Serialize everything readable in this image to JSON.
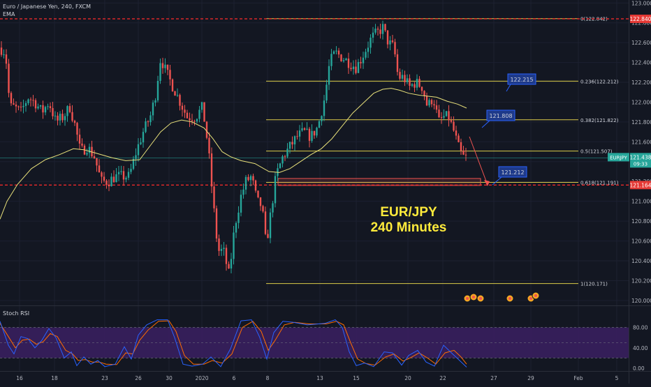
{
  "header": {
    "symbol_line": "Euro / Japanese Yen, 240, FXCM",
    "indicator": "EMA"
  },
  "annotation": {
    "line1": "EUR/JPY",
    "line2": "240 Minutes"
  },
  "price_badge": {
    "symbol": "EURJPY",
    "price": "121.438",
    "countdown": "09:33"
  },
  "callouts": [
    {
      "label": "122.215",
      "price": 122.215
    },
    {
      "label": "121.808",
      "price": 121.808
    },
    {
      "label": "121.212",
      "price": 121.212
    }
  ],
  "stoch_panel": {
    "title": "Stoch RSI",
    "ticks": [
      "80.00",
      "40.00",
      "0.00"
    ]
  },
  "colors": {
    "background": "#131722",
    "up_candle": "#26a69a",
    "down_candle": "#ef5350",
    "ema": "#e8e07a",
    "fib": "#dccc4a",
    "dashed_level": "#ff2b2b",
    "current_price": "#26a69a",
    "callout_fill": "#1e3a8a",
    "stoch_band": "#3b2062",
    "stoch_k": "#2962ff",
    "stoch_d": "#ff6d00"
  },
  "chart_data": {
    "type": "candlestick",
    "y_ticks": [
      123.0,
      122.8,
      122.6,
      122.4,
      122.2,
      122.0,
      121.8,
      121.6,
      121.4,
      121.2,
      121.0,
      120.8,
      120.6,
      120.4,
      120.2,
      120.0
    ],
    "y_tick_labels": [
      "123.000",
      "122.800",
      "122.600",
      "122.400",
      "122.200",
      "122.000",
      "121.800",
      "121.600",
      "121.400",
      "121.200",
      "121.000",
      "120.800",
      "120.600",
      "120.400",
      "120.200",
      "120.000"
    ],
    "ylim": [
      119.95,
      123.03
    ],
    "x_tick_labels": [
      "16",
      "18",
      "23",
      "26",
      "30",
      "2020",
      "6",
      "8",
      "13",
      "15",
      "20",
      "22",
      "27",
      "29",
      "Feb",
      "5"
    ],
    "horizontal_levels": [
      {
        "price": 122.84,
        "label": "122.840",
        "style": "dashed"
      },
      {
        "price": 121.164,
        "label": "121.164",
        "style": "dashed"
      }
    ],
    "fibonacci": [
      {
        "ratio": "0",
        "price": 122.842,
        "label": "0(122.842)"
      },
      {
        "ratio": "0.236",
        "price": 122.212,
        "label": "0.236(122.212)"
      },
      {
        "ratio": "0.382",
        "price": 121.822,
        "label": "0.382(121.822)"
      },
      {
        "ratio": "0.5",
        "price": 121.507,
        "label": "0.5(121.507)"
      },
      {
        "ratio": "0.618",
        "price": 121.191,
        "label": "0.618(121.191)"
      },
      {
        "ratio": "1",
        "price": 120.171,
        "label": "1(120.171)"
      }
    ],
    "support_zone": [
      121.16,
      121.23
    ],
    "current_price": 121.438,
    "last_price_level": 121.164,
    "ema_path": [
      [
        0,
        120.82
      ],
      [
        10,
        121.0
      ],
      [
        25,
        121.17
      ],
      [
        45,
        121.33
      ],
      [
        65,
        121.42
      ],
      [
        85,
        121.47
      ],
      [
        105,
        121.53
      ],
      [
        120,
        121.52
      ],
      [
        140,
        121.48
      ],
      [
        160,
        121.44
      ],
      [
        180,
        121.41
      ],
      [
        200,
        121.42
      ],
      [
        215,
        121.56
      ],
      [
        230,
        121.7
      ],
      [
        245,
        121.79
      ],
      [
        260,
        121.82
      ],
      [
        275,
        121.8
      ],
      [
        292,
        121.74
      ],
      [
        305,
        121.63
      ],
      [
        318,
        121.5
      ],
      [
        330,
        121.45
      ],
      [
        345,
        121.41
      ],
      [
        365,
        121.38
      ],
      [
        385,
        121.3
      ],
      [
        400,
        121.29
      ],
      [
        415,
        121.33
      ],
      [
        430,
        121.4
      ],
      [
        445,
        121.47
      ],
      [
        460,
        121.53
      ],
      [
        475,
        121.63
      ],
      [
        490,
        121.76
      ],
      [
        505,
        121.89
      ],
      [
        520,
        121.99
      ],
      [
        535,
        122.09
      ],
      [
        548,
        122.13
      ],
      [
        560,
        122.14
      ],
      [
        572,
        122.12
      ],
      [
        585,
        122.09
      ],
      [
        600,
        122.07
      ],
      [
        612,
        122.06
      ],
      [
        625,
        122.05
      ],
      [
        640,
        122.01
      ],
      [
        655,
        121.98
      ],
      [
        668,
        121.94
      ]
    ],
    "candle_anchors": [
      [
        0,
        122.55
      ],
      [
        8,
        122.5
      ],
      [
        14,
        121.95
      ],
      [
        20,
        121.95
      ],
      [
        30,
        121.9
      ],
      [
        40,
        122.05
      ],
      [
        50,
        122.0
      ],
      [
        60,
        121.9
      ],
      [
        70,
        122.0
      ],
      [
        80,
        121.8
      ],
      [
        90,
        121.85
      ],
      [
        100,
        121.95
      ],
      [
        108,
        121.75
      ],
      [
        115,
        121.5
      ],
      [
        125,
        121.55
      ],
      [
        135,
        121.45
      ],
      [
        145,
        121.2
      ],
      [
        155,
        121.2
      ],
      [
        165,
        121.25
      ],
      [
        175,
        121.25
      ],
      [
        185,
        121.25
      ],
      [
        195,
        121.5
      ],
      [
        205,
        121.7
      ],
      [
        215,
        121.85
      ],
      [
        222,
        122.05
      ],
      [
        230,
        122.45
      ],
      [
        238,
        122.3
      ],
      [
        248,
        122.15
      ],
      [
        258,
        122.0
      ],
      [
        268,
        121.85
      ],
      [
        280,
        121.85
      ],
      [
        290,
        121.95
      ],
      [
        298,
        121.55
      ],
      [
        305,
        121.0
      ],
      [
        312,
        120.5
      ],
      [
        320,
        120.5
      ],
      [
        328,
        120.25
      ],
      [
        336,
        120.75
      ],
      [
        345,
        121.05
      ],
      [
        352,
        121.2
      ],
      [
        360,
        121.25
      ],
      [
        368,
        121.0
      ],
      [
        375,
        120.95
      ],
      [
        381,
        120.55
      ],
      [
        388,
        120.9
      ],
      [
        395,
        121.25
      ],
      [
        405,
        121.45
      ],
      [
        415,
        121.55
      ],
      [
        425,
        121.65
      ],
      [
        435,
        121.7
      ],
      [
        445,
        121.65
      ],
      [
        455,
        121.75
      ],
      [
        465,
        122.05
      ],
      [
        472,
        122.4
      ],
      [
        480,
        122.5
      ],
      [
        490,
        122.45
      ],
      [
        500,
        122.4
      ],
      [
        510,
        122.35
      ],
      [
        518,
        122.45
      ],
      [
        525,
        122.55
      ],
      [
        532,
        122.65
      ],
      [
        540,
        122.7
      ],
      [
        548,
        122.75
      ],
      [
        556,
        122.6
      ],
      [
        564,
        122.55
      ],
      [
        570,
        122.25
      ],
      [
        578,
        122.25
      ],
      [
        586,
        122.15
      ],
      [
        595,
        122.2
      ],
      [
        605,
        122.15
      ],
      [
        612,
        121.95
      ],
      [
        620,
        122.05
      ],
      [
        628,
        121.8
      ],
      [
        635,
        121.85
      ],
      [
        642,
        121.85
      ],
      [
        650,
        121.7
      ],
      [
        656,
        121.55
      ],
      [
        662,
        121.45
      ],
      [
        668,
        121.44
      ]
    ],
    "stoch_rsi": {
      "ylim": [
        0,
        100
      ],
      "bands": [
        20,
        80
      ],
      "k": [
        [
          0,
          92
        ],
        [
          12,
          45
        ],
        [
          20,
          28
        ],
        [
          30,
          62
        ],
        [
          40,
          58
        ],
        [
          50,
          40
        ],
        [
          60,
          55
        ],
        [
          70,
          78
        ],
        [
          80,
          60
        ],
        [
          92,
          20
        ],
        [
          102,
          32
        ],
        [
          110,
          5
        ],
        [
          120,
          22
        ],
        [
          130,
          8
        ],
        [
          140,
          15
        ],
        [
          150,
          3
        ],
        [
          165,
          8
        ],
        [
          178,
          42
        ],
        [
          188,
          18
        ],
        [
          198,
          65
        ],
        [
          210,
          85
        ],
        [
          225,
          95
        ],
        [
          240,
          95
        ],
        [
          250,
          60
        ],
        [
          262,
          8
        ],
        [
          275,
          4
        ],
        [
          290,
          8
        ],
        [
          302,
          22
        ],
        [
          316,
          3
        ],
        [
          330,
          38
        ],
        [
          345,
          93
        ],
        [
          360,
          95
        ],
        [
          372,
          60
        ],
        [
          382,
          18
        ],
        [
          392,
          70
        ],
        [
          405,
          92
        ],
        [
          420,
          90
        ],
        [
          440,
          85
        ],
        [
          465,
          88
        ],
        [
          480,
          95
        ],
        [
          490,
          80
        ],
        [
          500,
          32
        ],
        [
          510,
          5
        ],
        [
          522,
          10
        ],
        [
          535,
          3
        ],
        [
          550,
          32
        ],
        [
          562,
          30
        ],
        [
          575,
          6
        ],
        [
          585,
          25
        ],
        [
          598,
          35
        ],
        [
          610,
          12
        ],
        [
          622,
          4
        ],
        [
          635,
          45
        ],
        [
          648,
          28
        ],
        [
          658,
          15
        ],
        [
          668,
          2
        ]
      ],
      "d": [
        [
          0,
          88
        ],
        [
          12,
          62
        ],
        [
          22,
          40
        ],
        [
          32,
          55
        ],
        [
          42,
          57
        ],
        [
          52,
          47
        ],
        [
          62,
          52
        ],
        [
          72,
          68
        ],
        [
          82,
          62
        ],
        [
          94,
          35
        ],
        [
          104,
          28
        ],
        [
          112,
          15
        ],
        [
          122,
          17
        ],
        [
          132,
          12
        ],
        [
          142,
          12
        ],
        [
          152,
          8
        ],
        [
          167,
          7
        ],
        [
          180,
          30
        ],
        [
          190,
          28
        ],
        [
          200,
          55
        ],
        [
          212,
          75
        ],
        [
          227,
          92
        ],
        [
          242,
          93
        ],
        [
          252,
          72
        ],
        [
          264,
          25
        ],
        [
          277,
          8
        ],
        [
          292,
          8
        ],
        [
          304,
          15
        ],
        [
          318,
          10
        ],
        [
          332,
          28
        ],
        [
          347,
          80
        ],
        [
          362,
          92
        ],
        [
          374,
          72
        ],
        [
          384,
          35
        ],
        [
          394,
          55
        ],
        [
          407,
          85
        ],
        [
          422,
          90
        ],
        [
          442,
          87
        ],
        [
          467,
          87
        ],
        [
          482,
          92
        ],
        [
          492,
          85
        ],
        [
          502,
          50
        ],
        [
          512,
          18
        ],
        [
          524,
          9
        ],
        [
          537,
          6
        ],
        [
          552,
          22
        ],
        [
          564,
          28
        ],
        [
          577,
          14
        ],
        [
          587,
          20
        ],
        [
          600,
          30
        ],
        [
          612,
          20
        ],
        [
          624,
          8
        ],
        [
          637,
          30
        ],
        [
          650,
          35
        ],
        [
          660,
          22
        ],
        [
          668,
          8
        ]
      ]
    }
  }
}
